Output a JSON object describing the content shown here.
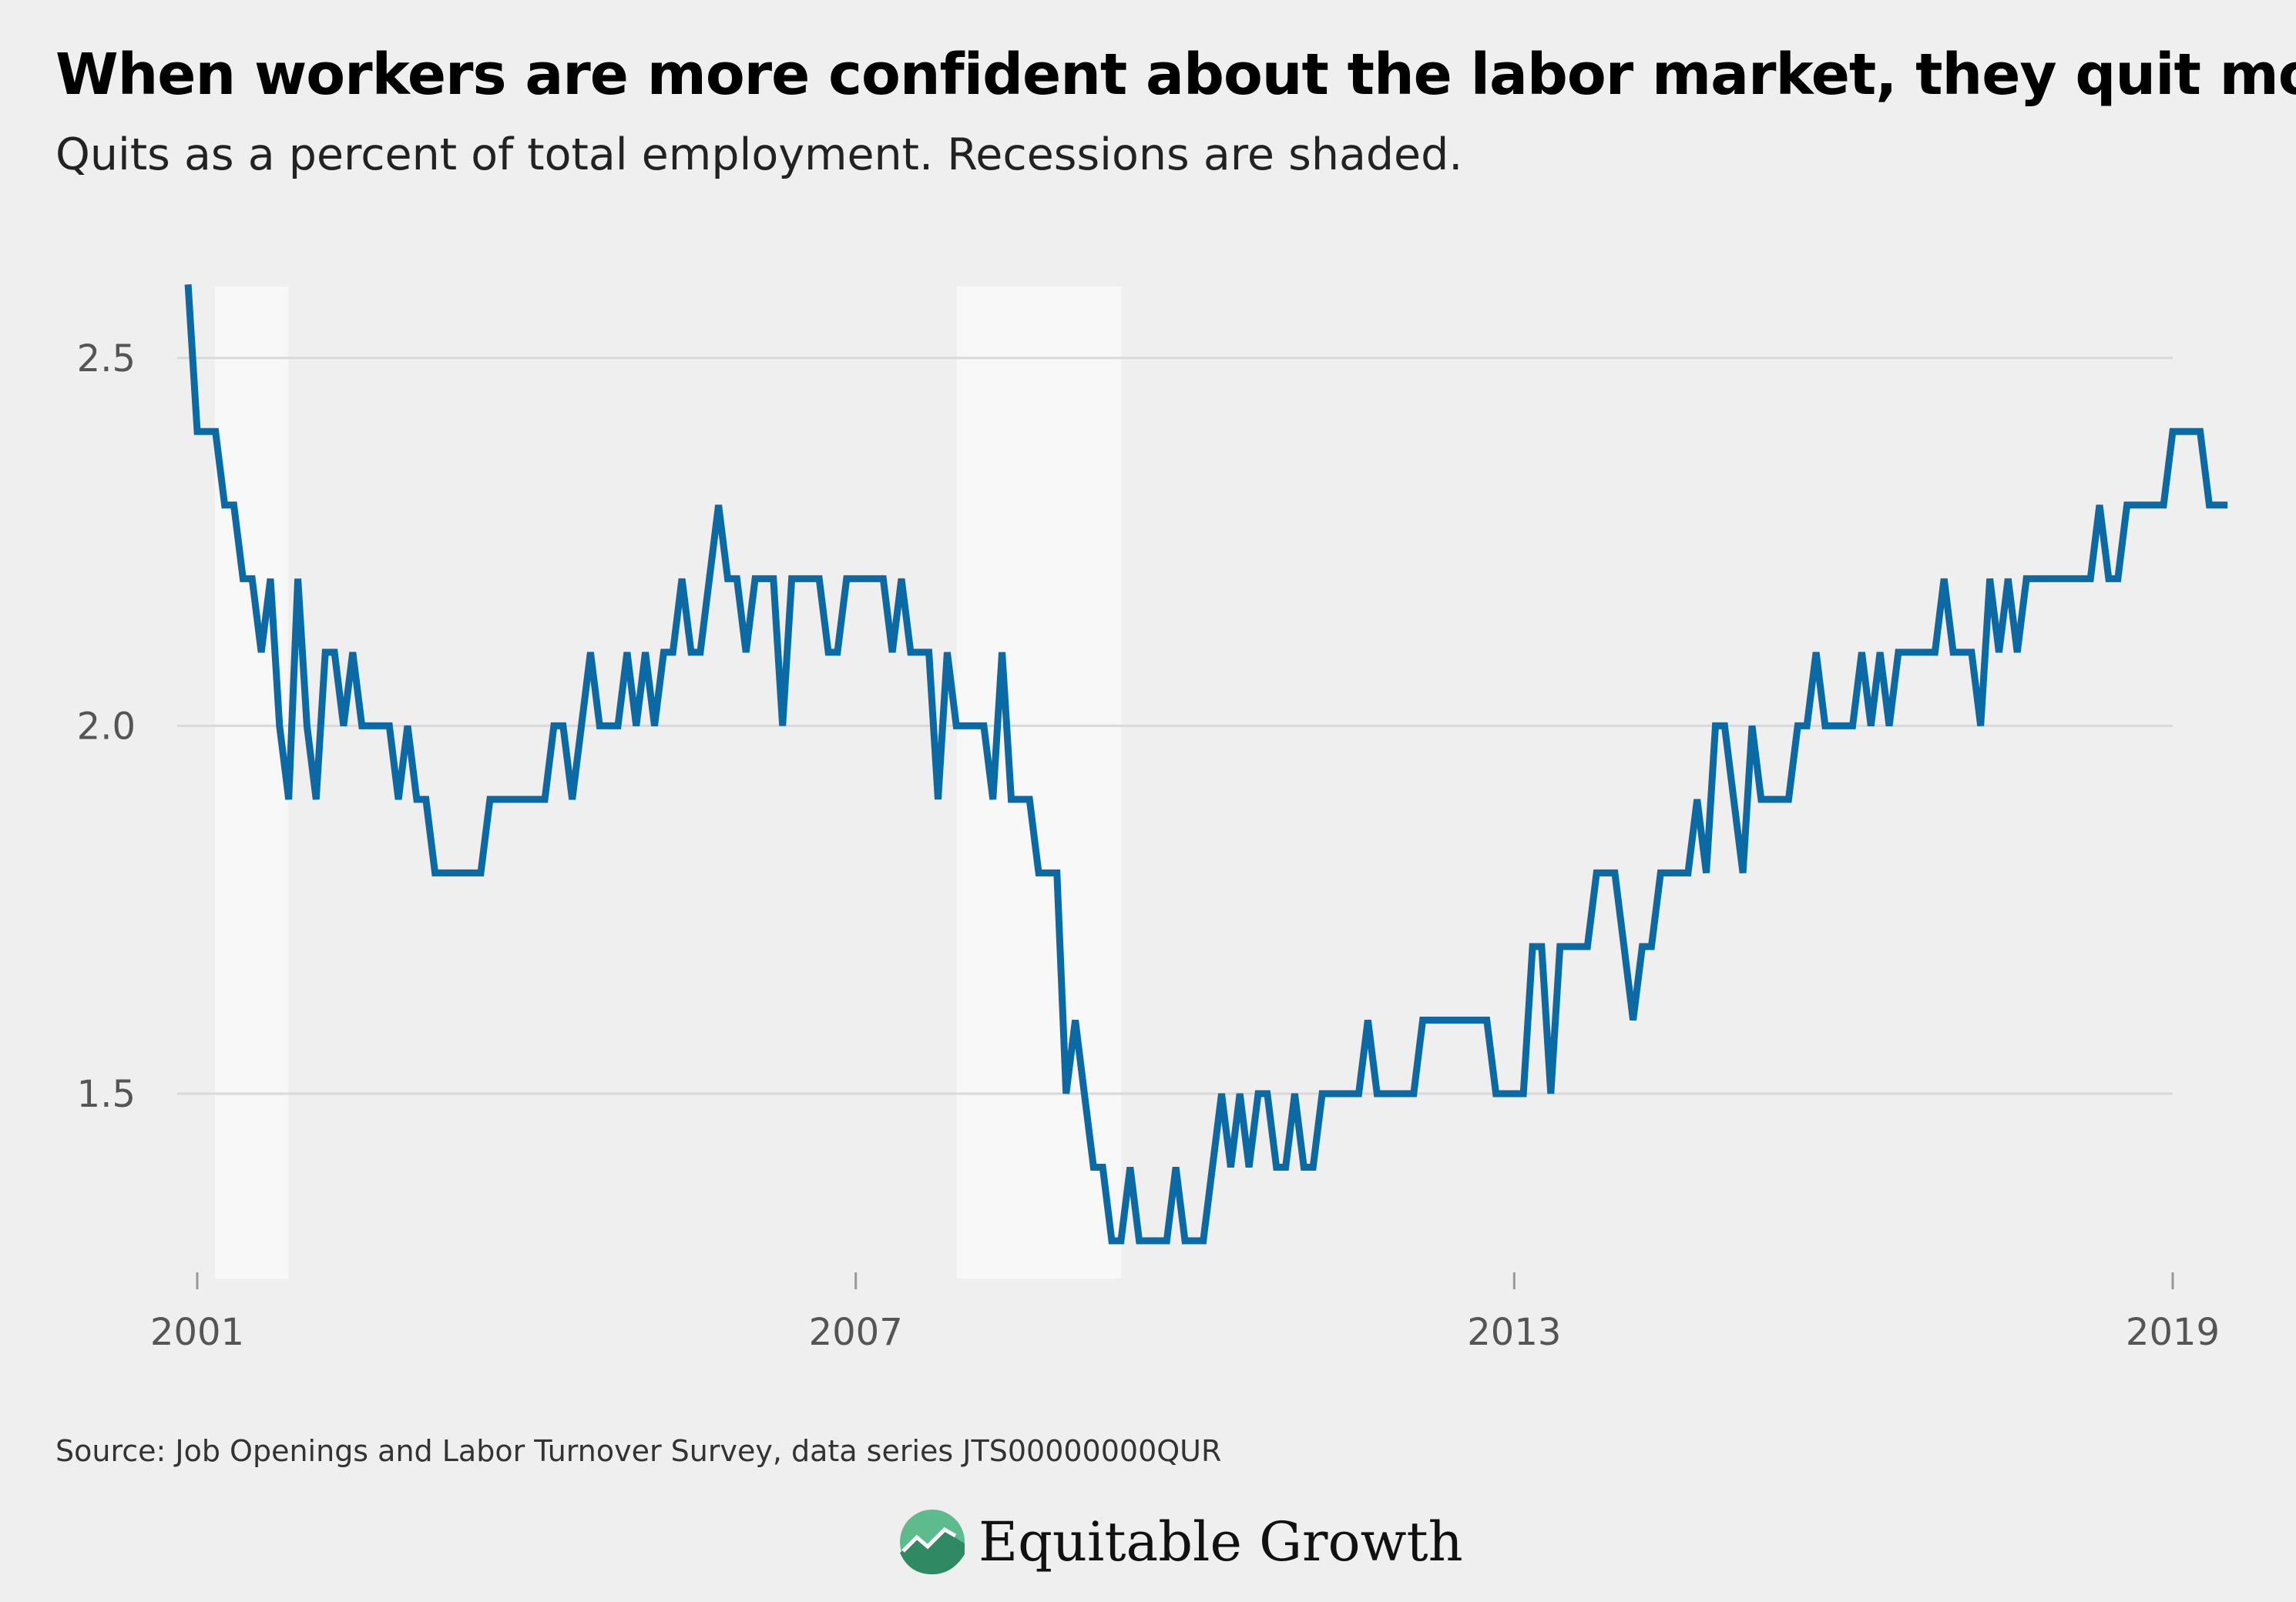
{
  "title": "When workers are more confident about the labor market, they quit more",
  "subtitle": "Quits as a percent of total employment. Recessions are shaded.",
  "source": "Source: Job Openings and Labor Turnover Survey, data series JTS00000000QUR",
  "logo_text": "Equitable Growth",
  "colors": {
    "background": "#efefef",
    "line": "#0b6aa3",
    "recession": "#f8f8f8",
    "grid": "#d9d9d9",
    "logo_green": "#5dbb8e"
  },
  "chart_data": {
    "type": "line",
    "title": "When workers are more confident about the labor market, they quit more",
    "subtitle": "Quits as a percent of total employment. Recessions are shaded.",
    "xlabel": "",
    "ylabel": "",
    "xlim": [
      2001,
      2019
    ],
    "ylim": [
      1.25,
      2.6
    ],
    "x_ticks": [
      "2001",
      "2007",
      "2013",
      "2019"
    ],
    "y_ticks": [
      "1.5",
      "2.0",
      "2.5"
    ],
    "grid": "horizontal",
    "recessions": [
      {
        "start": 2001.16,
        "end": 2001.83
      },
      {
        "start": 2007.92,
        "end": 2009.42
      }
    ],
    "series": [
      {
        "start": "2000-12",
        "frequency": "monthly",
        "values": [
          2.6,
          2.4,
          2.4,
          2.4,
          2.3,
          2.3,
          2.2,
          2.2,
          2.1,
          2.2,
          2.0,
          1.9,
          2.2,
          2.0,
          1.9,
          2.1,
          2.1,
          2.0,
          2.1,
          2.0,
          2.0,
          2.0,
          2.0,
          1.9,
          2.0,
          1.9,
          1.9,
          1.8,
          1.8,
          1.8,
          1.8,
          1.8,
          1.8,
          1.9,
          1.9,
          1.9,
          1.9,
          1.9,
          1.9,
          1.9,
          2.0,
          2.0,
          1.9,
          2.0,
          2.1,
          2.0,
          2.0,
          2.0,
          2.1,
          2.0,
          2.1,
          2.0,
          2.1,
          2.1,
          2.2,
          2.1,
          2.1,
          2.2,
          2.3,
          2.2,
          2.2,
          2.1,
          2.2,
          2.2,
          2.2,
          2.0,
          2.2,
          2.2,
          2.2,
          2.2,
          2.1,
          2.1,
          2.2,
          2.2,
          2.2,
          2.2,
          2.2,
          2.1,
          2.2,
          2.1,
          2.1,
          2.1,
          1.9,
          2.1,
          2.0,
          2.0,
          2.0,
          2.0,
          1.9,
          2.1,
          1.9,
          1.9,
          1.9,
          1.8,
          1.8,
          1.8,
          1.5,
          1.6,
          1.5,
          1.4,
          1.4,
          1.3,
          1.3,
          1.4,
          1.3,
          1.3,
          1.3,
          1.3,
          1.4,
          1.3,
          1.3,
          1.3,
          1.4,
          1.5,
          1.4,
          1.5,
          1.4,
          1.5,
          1.5,
          1.4,
          1.4,
          1.5,
          1.4,
          1.4,
          1.5,
          1.5,
          1.5,
          1.5,
          1.5,
          1.6,
          1.5,
          1.5,
          1.5,
          1.5,
          1.5,
          1.6,
          1.6,
          1.6,
          1.6,
          1.6,
          1.6,
          1.6,
          1.6,
          1.5,
          1.5,
          1.5,
          1.5,
          1.7,
          1.7,
          1.5,
          1.7,
          1.7,
          1.7,
          1.7,
          1.8,
          1.8,
          1.8,
          1.7,
          1.6,
          1.7,
          1.7,
          1.8,
          1.8,
          1.8,
          1.8,
          1.9,
          1.8,
          2.0,
          2.0,
          1.9,
          1.8,
          2.0,
          1.9,
          1.9,
          1.9,
          1.9,
          2.0,
          2.0,
          2.1,
          2.0,
          2.0,
          2.0,
          2.0,
          2.1,
          2.0,
          2.1,
          2.0,
          2.1,
          2.1,
          2.1,
          2.1,
          2.1,
          2.2,
          2.1,
          2.1,
          2.1,
          2.0,
          2.2,
          2.1,
          2.2,
          2.1,
          2.2,
          2.2,
          2.2,
          2.2,
          2.2,
          2.2,
          2.2,
          2.2,
          2.3,
          2.2,
          2.2,
          2.3,
          2.3,
          2.3,
          2.3,
          2.3,
          2.4,
          2.4,
          2.4,
          2.4,
          2.3,
          2.3,
          2.3
        ]
      }
    ]
  }
}
